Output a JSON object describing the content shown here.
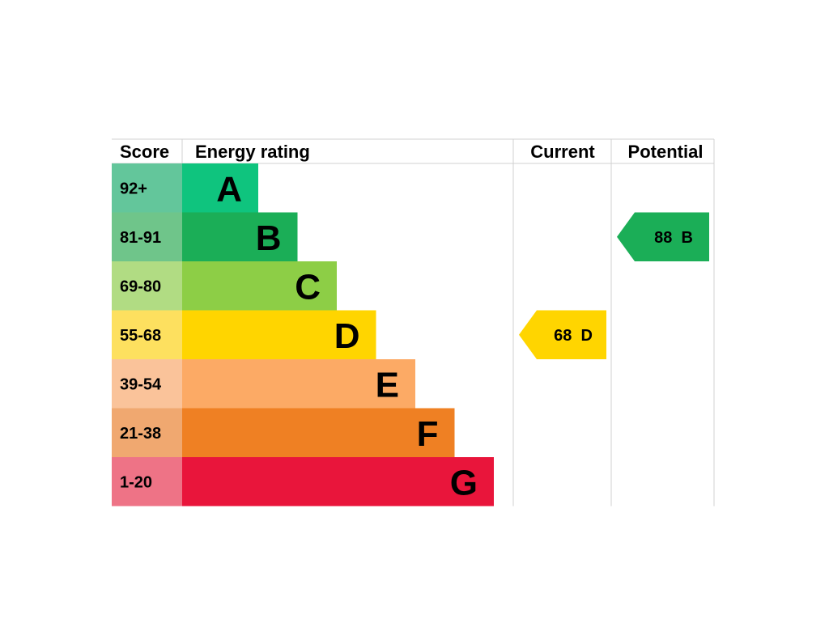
{
  "chart_data": {
    "type": "bar",
    "headers": {
      "score": "Score",
      "rating": "Energy rating",
      "current": "Current",
      "potential": "Potential"
    },
    "bands": [
      {
        "letter": "A",
        "score": "92+",
        "color": "#0FC47E",
        "score_bg": "#63C69B"
      },
      {
        "letter": "B",
        "score": "81-91",
        "color": "#1BAE57",
        "score_bg": "#6FC58A"
      },
      {
        "letter": "C",
        "score": "69-80",
        "color": "#8DCE46",
        "score_bg": "#B1DC83"
      },
      {
        "letter": "D",
        "score": "55-68",
        "color": "#FFD500",
        "score_bg": "#FDE05F"
      },
      {
        "letter": "E",
        "score": "39-54",
        "color": "#FCAA65",
        "score_bg": "#FAC39A"
      },
      {
        "letter": "F",
        "score": "21-38",
        "color": "#EF8023",
        "score_bg": "#F0A870"
      },
      {
        "letter": "G",
        "score": "1-20",
        "color": "#E9153B",
        "score_bg": "#EE7386"
      }
    ],
    "current": {
      "value": 68,
      "band": "D",
      "label": "68  D",
      "color": "#FFD500"
    },
    "potential": {
      "value": 88,
      "band": "B",
      "label": "88  B",
      "color": "#1BAE57"
    }
  }
}
